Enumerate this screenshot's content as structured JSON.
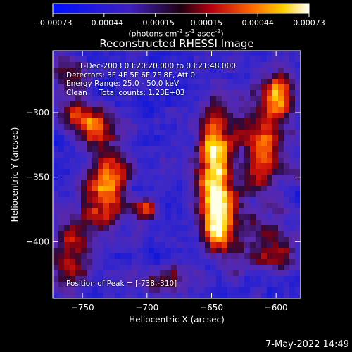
{
  "chart_data": {
    "type": "heatmap",
    "title": "Reconstructed RHESSI Image",
    "xlabel": "Heliocentric X (arcsec)",
    "ylabel": "Heliocentric Y (arcsec)",
    "x_ticks": [
      -750,
      -700,
      -650,
      -600
    ],
    "y_ticks": [
      -300,
      -350,
      -400
    ],
    "xlim": [
      -773,
      -581
    ],
    "ylim": [
      -444,
      -252
    ],
    "colorbar": {
      "ticks": [
        "-0.00073",
        "-0.00044",
        "-0.00015",
        "0.00015",
        "0.00044",
        "0.00073"
      ],
      "range": [
        -0.00073,
        0.00073
      ],
      "unit_text": "(photons cm",
      "unit_sup1": "-2",
      "unit_mid": " s",
      "unit_sup2": "-1",
      "unit_mid2": " asec",
      "unit_sup3": "-2",
      "unit_end": ")"
    },
    "peak_position": [
      -738,
      -310
    ],
    "bright_sources": [
      {
        "x": -648,
        "y": -335,
        "sx": 9,
        "sy": 32,
        "amp": 1.0
      },
      {
        "x": -645,
        "y": -382,
        "sx": 10,
        "sy": 18,
        "amp": 0.85
      },
      {
        "x": -738,
        "y": -312,
        "sx": 12,
        "sy": 10,
        "amp": 0.8
      },
      {
        "x": -757,
        "y": -300,
        "sx": 8,
        "sy": 8,
        "amp": 0.55
      },
      {
        "x": -728,
        "y": -343,
        "sx": 10,
        "sy": 10,
        "amp": 0.7
      },
      {
        "x": -735,
        "y": -370,
        "sx": 12,
        "sy": 16,
        "amp": 0.75
      },
      {
        "x": -760,
        "y": -410,
        "sx": 10,
        "sy": 20,
        "amp": 0.6
      },
      {
        "x": -700,
        "y": -375,
        "sx": 6,
        "sy": 6,
        "amp": 0.75
      },
      {
        "x": -612,
        "y": -330,
        "sx": 14,
        "sy": 30,
        "amp": 0.7
      },
      {
        "x": -598,
        "y": -285,
        "sx": 8,
        "sy": 14,
        "amp": 0.75
      },
      {
        "x": -605,
        "y": -405,
        "sx": 18,
        "sy": 12,
        "amp": 0.55
      },
      {
        "x": -760,
        "y": -270,
        "sx": 10,
        "sy": 10,
        "amp": 0.45
      },
      {
        "x": -688,
        "y": -430,
        "sx": 18,
        "sy": 8,
        "amp": 0.45
      }
    ]
  },
  "info": {
    "line1": "1-Dec-2003 03:20:20.000 to 03:21:48.000",
    "line2": "Detectors: 3F 4F 5F 6F 7F 8F, Att 0",
    "line3": "Energy Range: 25.0 - 50.0 keV",
    "line4": "Clean     Total counts: 1.23E+03",
    "peak": "Position of Peak = [-738,-310]"
  },
  "footer_date": "7-May-2022 14:49"
}
